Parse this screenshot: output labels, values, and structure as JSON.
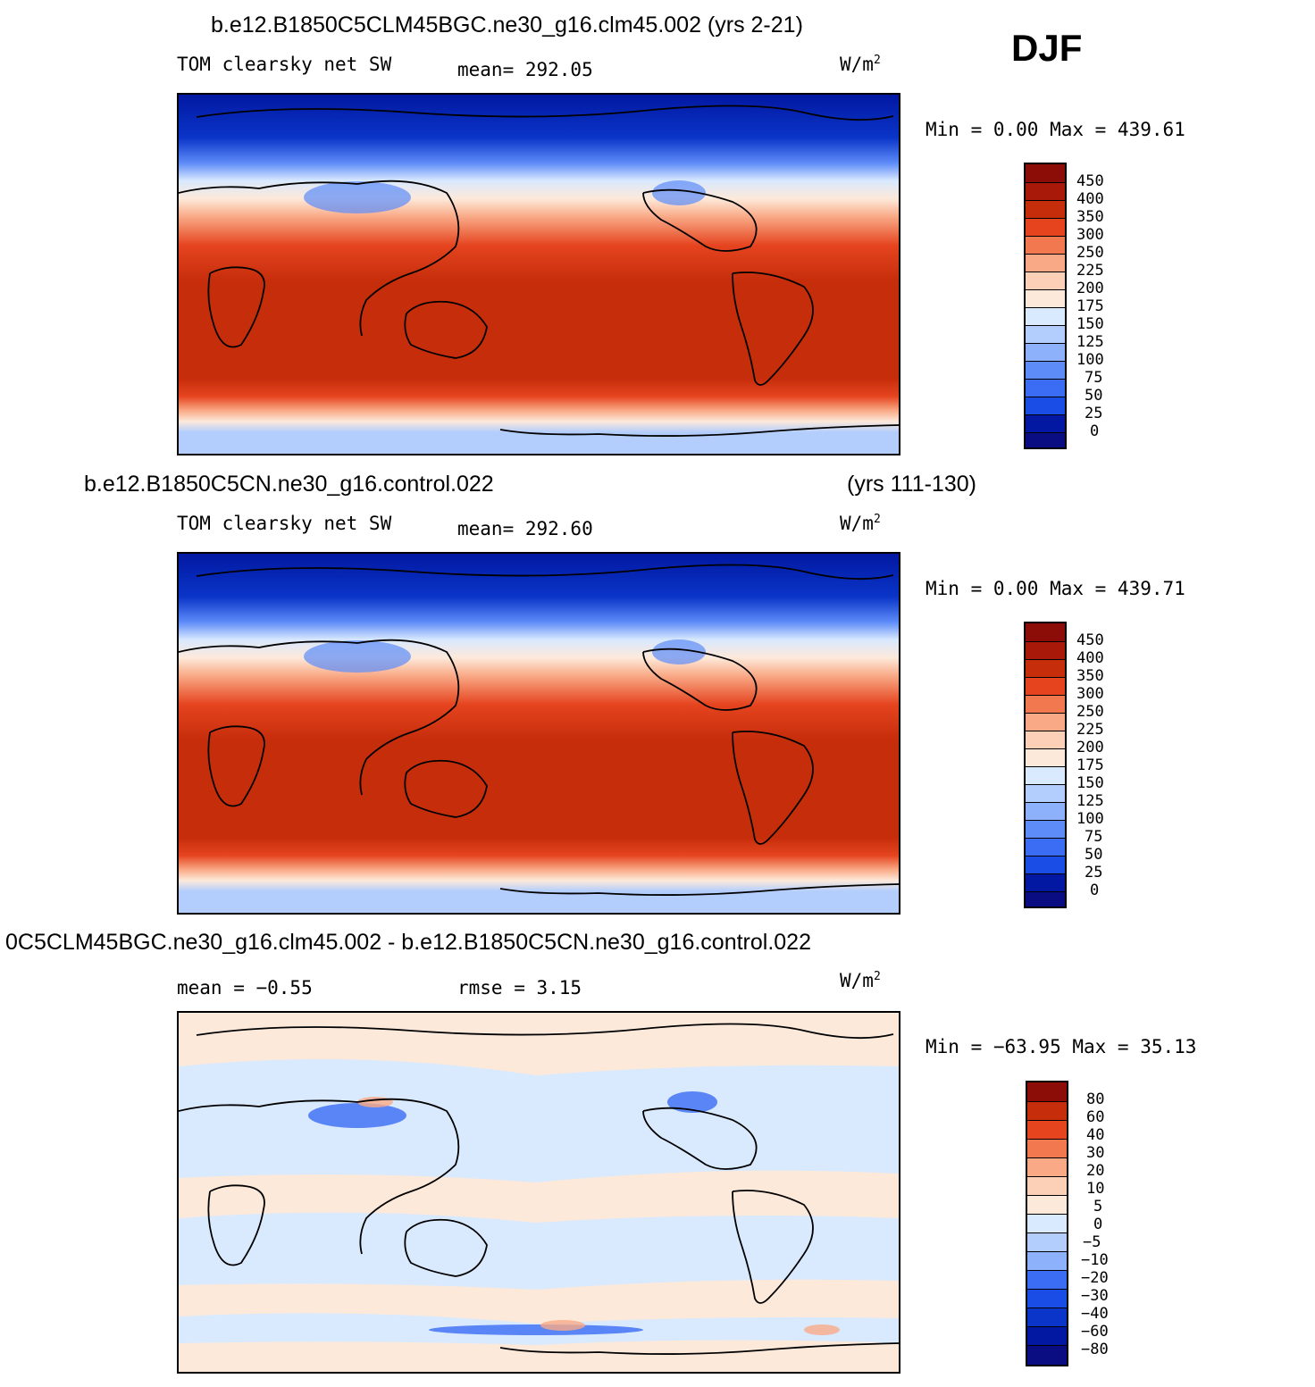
{
  "season": "DJF",
  "colors": {
    "abs_scale": [
      "#0a0d82",
      "#0218a2",
      "#0a35c8",
      "#1a4de6",
      "#3a6cf4",
      "#5d8bf8",
      "#8db1fb",
      "#b3cefd",
      "#d9e9fe",
      "#fde9da",
      "#fcd0b7",
      "#f9a986",
      "#f2794f",
      "#e5441f",
      "#c62d0b",
      "#8c0c08"
    ],
    "diff_scale": [
      "#0a0d82",
      "#0218a2",
      "#0a35c8",
      "#1a4de6",
      "#3a6cf4",
      "#8db1fb",
      "#b3cefd",
      "#d9e9fe",
      "#fde9da",
      "#fcd0b7",
      "#f9a986",
      "#f2794f",
      "#e5441f",
      "#c62d0b",
      "#8c0c08"
    ],
    "land_line": "#000000"
  },
  "panels": [
    {
      "case_title": "b.e12.B1850C5CLM45BGC.ne30_g16.clm45.002 (yrs 2-21)",
      "case_title_right": "",
      "variable": "TOM clearsky net SW",
      "stat_text": "mean= 292.05",
      "units": "W/m",
      "units_sup": "2",
      "minmax": "Min =    0.00 Max = 439.61",
      "colorbar_labels": [
        "450",
        "400",
        "350",
        "300",
        "250",
        "225",
        "200",
        "175",
        "150",
        "125",
        "100",
        "75",
        "50",
        "25",
        "0"
      ]
    },
    {
      "case_title": "b.e12.B1850C5CN.ne30_g16.control.022",
      "case_title_right": "(yrs 111-130)",
      "variable": "TOM clearsky net SW",
      "stat_text": "mean= 292.60",
      "units": "W/m",
      "units_sup": "2",
      "minmax": "Min =    0.00 Max = 439.71",
      "colorbar_labels": [
        "450",
        "400",
        "350",
        "300",
        "250",
        "225",
        "200",
        "175",
        "150",
        "125",
        "100",
        "75",
        "50",
        "25",
        "0"
      ]
    },
    {
      "case_title": "0C5CLM45BGC.ne30_g16.clm45.002 - b.e12.B1850C5CN.ne30_g16.control.022",
      "case_title_right": "",
      "variable": "mean =   −0.55",
      "stat_text": "rmse =    3.15",
      "units": "W/m",
      "units_sup": "2",
      "minmax": "Min = −63.95 Max =  35.13",
      "colorbar_labels": [
        "80",
        "60",
        "40",
        "30",
        "20",
        "10",
        "5",
        "0",
        "−5",
        "−10",
        "−20",
        "−30",
        "−40",
        "−60",
        "−80"
      ]
    }
  ]
}
